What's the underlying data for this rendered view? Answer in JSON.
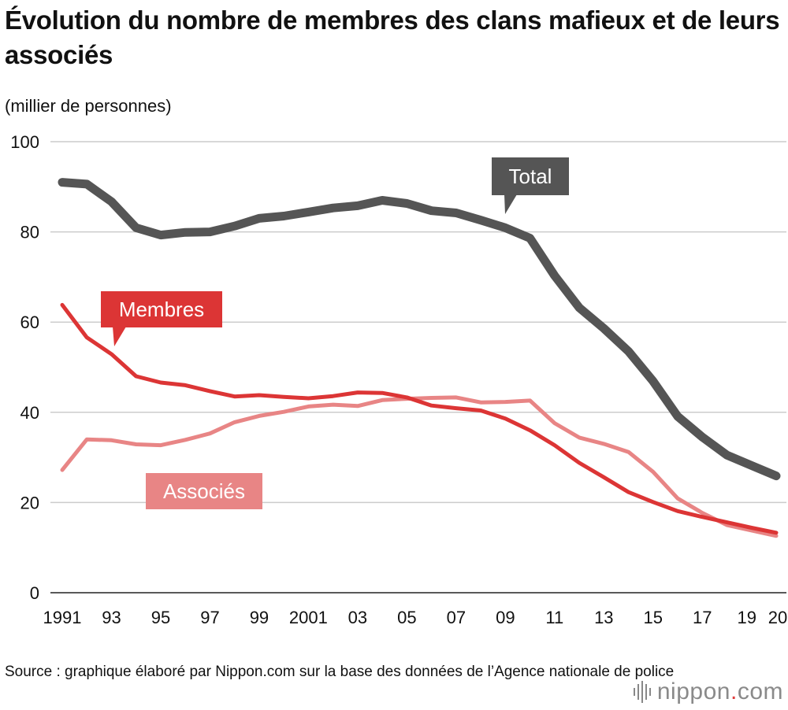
{
  "title": "Évolution du nombre de membres des clans mafieux et de leurs associés",
  "unit_label": "(millier de personnes)",
  "source": "Source : graphique élaboré par Nippon.com sur la base des données de l’Agence nationale de police",
  "logo": {
    "name": "nippon",
    "dot": ".",
    "suffix": "com",
    "icon": "sound-bars-icon"
  },
  "colors": {
    "total": "#555555",
    "membres": "#dc3535",
    "associes": "#e88585",
    "grid": "#cccccc",
    "axis": "#222222"
  },
  "chart_data": {
    "type": "line",
    "title": "Évolution du nombre de membres des clans mafieux et de leurs associés",
    "xlabel": "",
    "ylabel": "(millier de personnes)",
    "x": [
      1991,
      1992,
      1993,
      1994,
      1995,
      1996,
      1997,
      1998,
      1999,
      2000,
      2001,
      2002,
      2003,
      2004,
      2005,
      2006,
      2007,
      2008,
      2009,
      2010,
      2011,
      2012,
      2013,
      2014,
      2015,
      2016,
      2017,
      2018,
      2019,
      2020
    ],
    "x_tick_values": [
      1991,
      1993,
      1995,
      1997,
      1999,
      2001,
      2003,
      2005,
      2007,
      2009,
      2011,
      2013,
      2015,
      2017,
      2019,
      2020
    ],
    "x_tick_labels": [
      "1991",
      "93",
      "95",
      "97",
      "99",
      "2001",
      "03",
      "05",
      "07",
      "09",
      "11",
      "13",
      "15",
      "17",
      "19",
      "20"
    ],
    "y_ticks": [
      0,
      20,
      40,
      60,
      80,
      100
    ],
    "ylim": [
      0,
      100
    ],
    "grid": true,
    "series": [
      {
        "name": "Total",
        "key": "total",
        "values": [
          91.0,
          90.6,
          86.7,
          80.9,
          79.3,
          79.9,
          80.0,
          81.3,
          83.0,
          83.5,
          84.4,
          85.3,
          85.8,
          87.0,
          86.3,
          84.7,
          84.2,
          82.6,
          80.9,
          78.6,
          70.3,
          63.2,
          58.6,
          53.5,
          46.9,
          39.1,
          34.5,
          30.5,
          28.2,
          25.9
        ]
      },
      {
        "name": "Membres",
        "key": "membres",
        "values": [
          63.8,
          56.6,
          52.9,
          48.0,
          46.6,
          46.0,
          44.7,
          43.5,
          43.8,
          43.4,
          43.1,
          43.6,
          44.4,
          44.3,
          43.3,
          41.5,
          40.9,
          40.4,
          38.6,
          36.0,
          32.7,
          28.8,
          25.6,
          22.3,
          20.1,
          18.1,
          16.8,
          15.6,
          14.4,
          13.3
        ]
      },
      {
        "name": "Associés",
        "key": "associes",
        "values": [
          27.2,
          34.0,
          33.8,
          32.9,
          32.7,
          33.9,
          35.3,
          37.8,
          39.2,
          40.1,
          41.3,
          41.7,
          41.4,
          42.7,
          43.0,
          43.2,
          43.3,
          42.2,
          42.3,
          42.6,
          37.6,
          34.4,
          33.0,
          31.2,
          26.8,
          20.9,
          17.7,
          15.0,
          13.8,
          12.6
        ]
      }
    ],
    "callouts": [
      "Total",
      "Membres",
      "Associés"
    ]
  }
}
